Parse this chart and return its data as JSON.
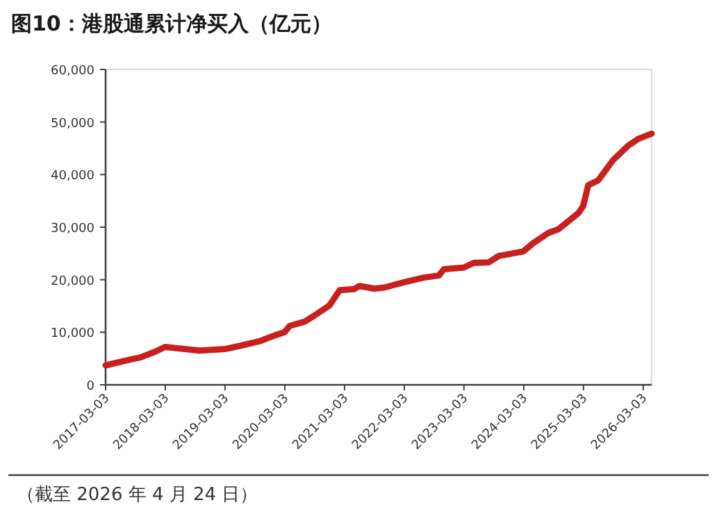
{
  "chart_data": {
    "type": "line",
    "title": "图10：港股通累计净买入（亿元）",
    "x": [
      "2017-03-03",
      "2017-08",
      "2017-10",
      "2018-01",
      "2018-03",
      "2018-07",
      "2018-10",
      "2019-03",
      "2019-06",
      "2019-10",
      "2020-01",
      "2020-03",
      "2020-04",
      "2020-07",
      "2020-09",
      "2020-12",
      "2021-02",
      "2021-05",
      "2021-06",
      "2021-09",
      "2021-11",
      "2022-03",
      "2022-07",
      "2022-10",
      "2022-11",
      "2023-03",
      "2023-05",
      "2023-08",
      "2023-10",
      "2024-03",
      "2024-05",
      "2024-08",
      "2024-10",
      "2025-02",
      "2025-03",
      "2025-04",
      "2025-06",
      "2025-09",
      "2025-12",
      "2026-02",
      "2026-04-24"
    ],
    "series": [
      {
        "color": "#c8201e",
        "values": [
          3700,
          4800,
          5200,
          6300,
          7200,
          6800,
          6500,
          6800,
          7400,
          8300,
          9400,
          10000,
          11200,
          12000,
          13200,
          15100,
          18000,
          18200,
          18800,
          18300,
          18500,
          19500,
          20400,
          20800,
          22000,
          22300,
          23200,
          23300,
          24500,
          25400,
          27000,
          28900,
          29600,
          32700,
          34000,
          38000,
          38900,
          42800,
          45500,
          46800,
          47800
        ]
      }
    ],
    "xlim": [
      "2017-03-03",
      "2026-04-24"
    ],
    "xticks": [
      "2017-03-03",
      "2018-03-03",
      "2019-03-03",
      "2020-03-03",
      "2021-03-03",
      "2022-03-03",
      "2023-03-03",
      "2024-03-03",
      "2025-03-03",
      "2026-03-03"
    ],
    "ylim": [
      0,
      60000
    ],
    "yticks": [
      {
        "value": 0,
        "label": "0"
      },
      {
        "value": 10000,
        "label": "10,000"
      },
      {
        "value": 20000,
        "label": "20,000"
      },
      {
        "value": 30000,
        "label": "30,000"
      },
      {
        "value": 40000,
        "label": "40,000"
      },
      {
        "value": 50000,
        "label": "50,000"
      },
      {
        "value": 60000,
        "label": "60,000"
      }
    ],
    "grid": false,
    "marker": "none",
    "line_style": "solid",
    "annotations": [
      "（截至 2026 年 4 月 24 日）"
    ]
  }
}
